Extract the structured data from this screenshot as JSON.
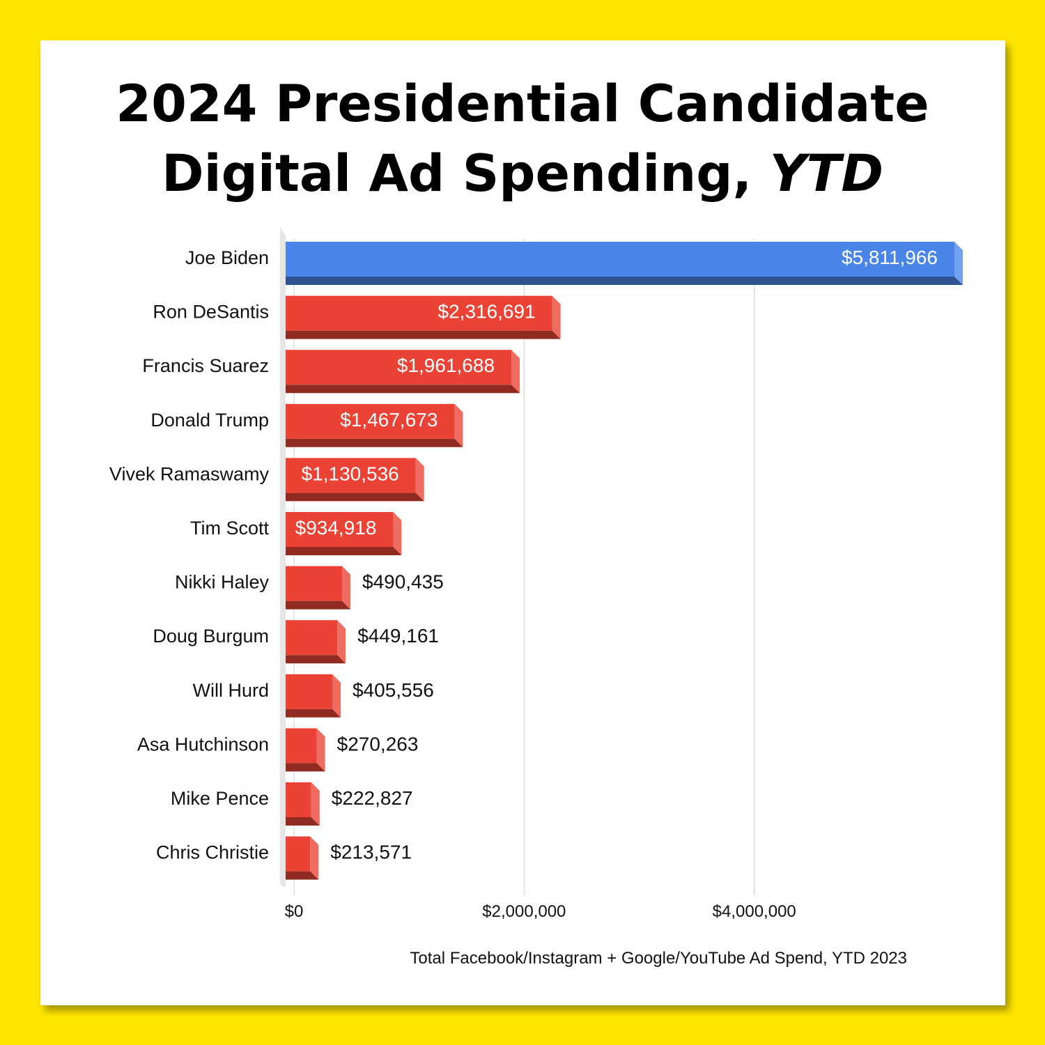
{
  "colors": {
    "background": "#ffe600",
    "highlight_bar": "#4a86e8",
    "bar": "#ea4335"
  },
  "chart_data": {
    "type": "bar",
    "orientation": "horizontal",
    "style": "3d",
    "title_line1": "2024 Presidential Candidate",
    "title_line2_main": "Digital Ad Spending,",
    "title_line2_em": "YTD",
    "xlabel": "Total Facebook/Instagram + Google/YouTube Ad Spend, YTD 2023",
    "ylabel": "",
    "xlim": [
      0,
      5811966
    ],
    "grid": true,
    "legend": "none",
    "xticks": [
      0,
      2000000,
      4000000
    ],
    "xtick_labels": [
      "$0",
      "$2,000,000",
      "$4,000,000"
    ],
    "categories": [
      "Joe Biden",
      "Ron DeSantis",
      "Francis Suarez",
      "Donald Trump",
      "Vivek Ramaswamy",
      "Tim Scott",
      "Nikki Haley",
      "Doug Burgum",
      "Will Hurd",
      "Asa Hutchinson",
      "Mike Pence",
      "Chris Christie"
    ],
    "values": [
      5811966,
      2316691,
      1961688,
      1467673,
      1130536,
      934918,
      490435,
      449161,
      405556,
      270263,
      222827,
      213571
    ],
    "value_labels": [
      "$5,811,966",
      "$2,316,691",
      "$1,961,688",
      "$1,467,673",
      "$1,130,536",
      "$934,918",
      "$490,435",
      "$449,161",
      "$405,556",
      "$270,263",
      "$222,827",
      "$213,571"
    ],
    "highlight_categories": [
      "Joe Biden"
    ]
  }
}
